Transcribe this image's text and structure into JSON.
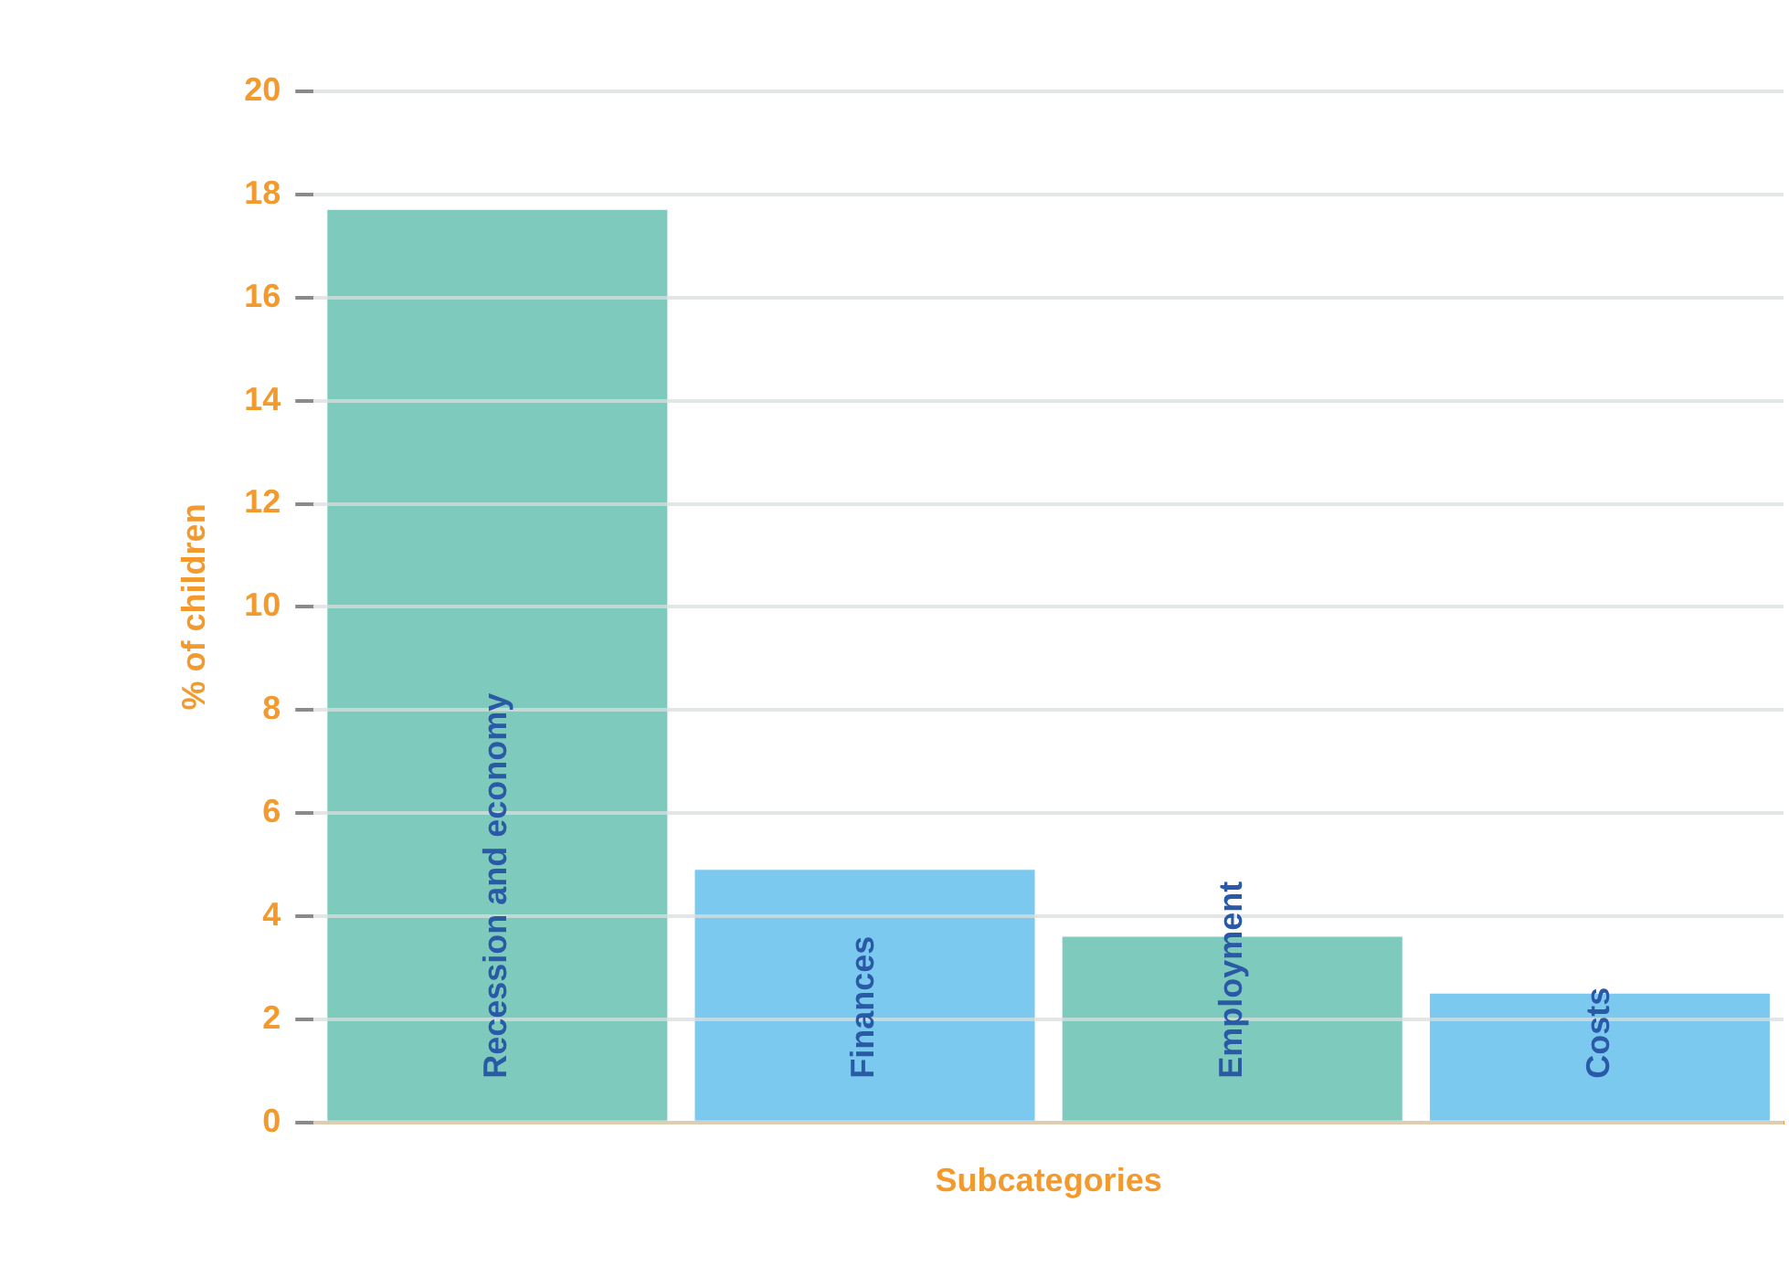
{
  "chart_data": {
    "type": "bar",
    "xlabel": "Subcategories",
    "ylabel": "% of children",
    "categories": [
      "Recession and economy",
      "Finances",
      "Employment",
      "Costs"
    ],
    "values": [
      17.7,
      4.9,
      3.6,
      2.5
    ],
    "colors": [
      "#7ecbbd",
      "#7cc9ef",
      "#7ecbbd",
      "#7cc9ef"
    ],
    "ylim": [
      0,
      20
    ],
    "yticks": [
      0,
      2,
      4,
      6,
      8,
      10,
      12,
      14,
      16,
      18,
      20
    ],
    "grid": "y"
  }
}
